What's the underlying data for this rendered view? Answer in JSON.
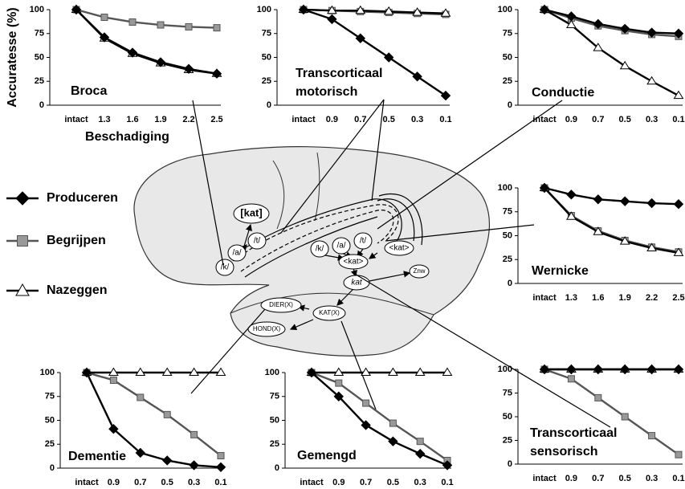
{
  "chart_data": [
    {
      "type": "line",
      "title": "Broca",
      "y_label": "Accuratesse (%)",
      "x_label": "Beschadiging",
      "categories": [
        "intact",
        "1.3",
        "1.6",
        "1.9",
        "2.2",
        "2.5"
      ],
      "ylim": [
        0,
        100
      ],
      "yticks": [
        0,
        25,
        50,
        75,
        100
      ],
      "series": [
        {
          "name": "Produceren",
          "color": "#000000",
          "marker": "diamond",
          "values": [
            100,
            71,
            55,
            45,
            38,
            33
          ]
        },
        {
          "name": "Begrijpen",
          "color": "#999999",
          "marker": "square",
          "values": [
            100,
            92,
            87,
            84,
            82,
            81
          ]
        },
        {
          "name": "Nazeggen",
          "color": "#ffffff",
          "marker": "triangle",
          "values": [
            100,
            70,
            54,
            44,
            37,
            33
          ]
        }
      ]
    },
    {
      "type": "line",
      "title": "Transcorticaal motorisch",
      "categories": [
        "intact",
        "0.9",
        "0.7",
        "0.5",
        "0.3",
        "0.1"
      ],
      "ylim": [
        0,
        100
      ],
      "yticks": [
        0,
        25,
        50,
        75,
        100
      ],
      "series": [
        {
          "name": "Produceren",
          "color": "#000000",
          "marker": "diamond",
          "values": [
            100,
            90,
            70,
            50,
            30,
            10
          ]
        },
        {
          "name": "Begrijpen",
          "color": "#999999",
          "marker": "square",
          "values": [
            100,
            99,
            98,
            97,
            96,
            95
          ]
        },
        {
          "name": "Nazeggen",
          "color": "#ffffff",
          "marker": "triangle",
          "values": [
            100,
            99,
            99,
            98,
            97,
            96
          ]
        }
      ]
    },
    {
      "type": "line",
      "title": "Conductie",
      "categories": [
        "intact",
        "0.9",
        "0.7",
        "0.5",
        "0.3",
        "0.1"
      ],
      "ylim": [
        0,
        100
      ],
      "yticks": [
        0,
        25,
        50,
        75,
        100
      ],
      "series": [
        {
          "name": "Produceren",
          "color": "#000000",
          "marker": "diamond",
          "values": [
            100,
            93,
            85,
            80,
            76,
            75
          ]
        },
        {
          "name": "Begrijpen",
          "color": "#999999",
          "marker": "square",
          "values": [
            100,
            91,
            83,
            78,
            74,
            72
          ]
        },
        {
          "name": "Nazeggen",
          "color": "#ffffff",
          "marker": "triangle",
          "values": [
            100,
            84,
            60,
            41,
            25,
            10
          ]
        }
      ]
    },
    {
      "type": "line",
      "title": "Wernicke",
      "categories": [
        "intact",
        "1.3",
        "1.6",
        "1.9",
        "2.2",
        "2.5"
      ],
      "ylim": [
        0,
        100
      ],
      "yticks": [
        0,
        25,
        50,
        75,
        100
      ],
      "series": [
        {
          "name": "Produceren",
          "color": "#000000",
          "marker": "diamond",
          "values": [
            100,
            93,
            88,
            86,
            84,
            83
          ]
        },
        {
          "name": "Begrijpen",
          "color": "#999999",
          "marker": "square",
          "values": [
            100,
            71,
            55,
            45,
            38,
            33
          ]
        },
        {
          "name": "Nazeggen",
          "color": "#ffffff",
          "marker": "triangle",
          "values": [
            100,
            70,
            54,
            44,
            37,
            32
          ]
        }
      ]
    },
    {
      "type": "line",
      "title": "Dementie",
      "categories": [
        "intact",
        "0.9",
        "0.7",
        "0.5",
        "0.3",
        "0.1"
      ],
      "ylim": [
        0,
        100
      ],
      "yticks": [
        0,
        25,
        50,
        75,
        100
      ],
      "series": [
        {
          "name": "Produceren",
          "color": "#000000",
          "marker": "diamond",
          "values": [
            100,
            41,
            16,
            8,
            3,
            1
          ]
        },
        {
          "name": "Begrijpen",
          "color": "#999999",
          "marker": "square",
          "values": [
            100,
            92,
            74,
            56,
            35,
            13
          ]
        },
        {
          "name": "Nazeggen",
          "color": "#ffffff",
          "marker": "triangle",
          "values": [
            100,
            100,
            100,
            100,
            100,
            100
          ]
        }
      ]
    },
    {
      "type": "line",
      "title": "Gemengd",
      "categories": [
        "intact",
        "0.9",
        "0.7",
        "0.5",
        "0.3",
        "0.1"
      ],
      "ylim": [
        0,
        100
      ],
      "yticks": [
        0,
        25,
        50,
        75,
        100
      ],
      "series": [
        {
          "name": "Produceren",
          "color": "#000000",
          "marker": "diamond",
          "values": [
            100,
            75,
            45,
            28,
            15,
            3
          ]
        },
        {
          "name": "Begrijpen",
          "color": "#999999",
          "marker": "square",
          "values": [
            100,
            89,
            68,
            47,
            28,
            8
          ]
        },
        {
          "name": "Nazeggen",
          "color": "#ffffff",
          "marker": "triangle",
          "values": [
            100,
            100,
            100,
            100,
            100,
            100
          ]
        }
      ]
    },
    {
      "type": "line",
      "title": "Transcorticaal sensorisch",
      "categories": [
        "intact",
        "0.9",
        "0.7",
        "0.5",
        "0.3",
        "0.1"
      ],
      "ylim": [
        0,
        100
      ],
      "yticks": [
        0,
        25,
        50,
        75,
        100
      ],
      "series": [
        {
          "name": "Produceren",
          "color": "#000000",
          "marker": "diamond",
          "values": [
            100,
            100,
            100,
            100,
            100,
            100
          ]
        },
        {
          "name": "Begrijpen",
          "color": "#999999",
          "marker": "square",
          "values": [
            100,
            90,
            70,
            50,
            30,
            10
          ]
        },
        {
          "name": "Nazeggen",
          "color": "#ffffff",
          "marker": "triangle",
          "values": [
            100,
            100,
            100,
            100,
            100,
            100
          ]
        }
      ]
    }
  ],
  "diagram": {
    "nodes": [
      "[kat]",
      "/t/",
      "/a/",
      "/k/",
      "/k/",
      "/a/",
      "/t/",
      "<kat>",
      "<kat>",
      "kat",
      "Znw",
      "DIER(X)",
      "KAT(X)",
      "HOND(X)"
    ]
  }
}
